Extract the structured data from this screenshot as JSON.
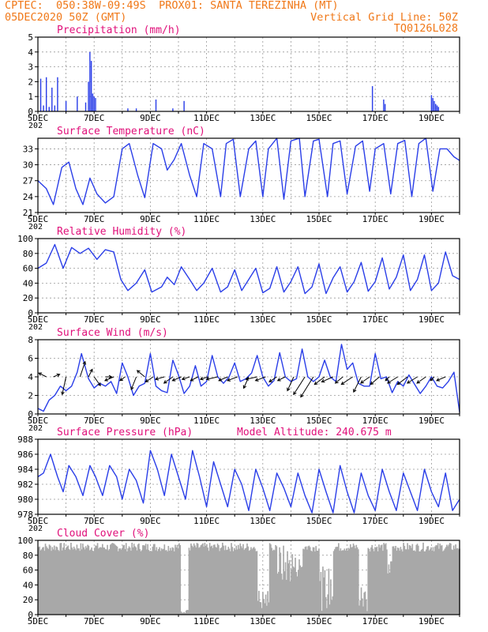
{
  "header": {
    "line1_left": "CPTEC:  050:38W-09:49S  PROX01: SANTA TEREZINHA (MT)",
    "line2_left": "05DEC2020 50Z (GMT)",
    "line2_right": "Vertical Grid Line: 50Z",
    "line3_right": "TQ0126L028",
    "altitude_label": "Model Altitude: 240.675 m"
  },
  "colors": {
    "header": "#f07818",
    "title": "#e0107a",
    "series": "#2a3ee8",
    "bars": "#2a3ee8",
    "cloud": "#a8a8a8"
  },
  "x_axis": {
    "labels": [
      "5DEC",
      "7DEC",
      "9DEC",
      "11DEC",
      "13DEC",
      "15DEC",
      "17DEC",
      "19DEC"
    ],
    "partial_label": "202",
    "start_day": 5,
    "end_day": 20
  },
  "chart_data": [
    {
      "type": "bar",
      "title": "Precipitation (mm/h)",
      "ylim": [
        0,
        5
      ],
      "yticks": [
        0,
        1,
        2,
        3,
        4,
        5
      ],
      "x_unit": "day of Dec 2020",
      "bar_width_days": 0.04,
      "x": [
        5.1,
        5.2,
        5.3,
        5.4,
        5.5,
        5.6,
        5.7,
        6.0,
        6.4,
        6.7,
        6.8,
        6.85,
        6.9,
        6.95,
        7.0,
        7.05,
        8.2,
        8.5,
        9.2,
        9.8,
        10.2,
        16.9,
        17.3,
        17.35,
        19.0,
        19.05,
        19.1,
        19.15,
        19.2,
        19.25
      ],
      "values": [
        2.2,
        0.4,
        2.3,
        0.3,
        1.6,
        0.4,
        2.3,
        0.7,
        1.0,
        0.6,
        2.0,
        4.0,
        3.4,
        1.2,
        1.0,
        0.9,
        0.2,
        0.2,
        0.8,
        0.2,
        0.7,
        1.7,
        0.8,
        0.5,
        1.1,
        0.9,
        0.7,
        0.5,
        0.4,
        0.3
      ]
    },
    {
      "type": "line",
      "title": "Surface Temperature (nC)",
      "ylim": [
        21,
        35
      ],
      "yticks": [
        21,
        24,
        27,
        30,
        33
      ],
      "series": [
        {
          "x": [
            5,
            5.3,
            5.55,
            5.85,
            6.1,
            6.35,
            6.6,
            6.85,
            7.1,
            7.4,
            7.7,
            8.0,
            8.25,
            8.55,
            8.8,
            9.1,
            9.4,
            9.6,
            9.85,
            10.1,
            10.4,
            10.65,
            10.9,
            11.2,
            11.5,
            11.7,
            11.95,
            12.2,
            12.5,
            12.75,
            13,
            13.2,
            13.5,
            13.75,
            14,
            14.3,
            14.5,
            14.8,
            15,
            15.3,
            15.5,
            15.75,
            16,
            16.3,
            16.55,
            16.8,
            17,
            17.3,
            17.55,
            17.8,
            18.05,
            18.3,
            18.55,
            18.8,
            19.05,
            19.3,
            19.55,
            19.8,
            20
          ],
          "values": [
            27,
            25.5,
            22.5,
            29.5,
            30.5,
            25.5,
            22.5,
            27.5,
            24.5,
            22.8,
            24,
            33,
            34,
            28,
            23.8,
            34,
            33,
            29,
            31,
            34,
            28,
            24,
            34,
            33,
            24,
            34,
            34.8,
            24,
            33,
            34.5,
            24,
            33,
            35,
            23.5,
            34.5,
            35,
            24,
            34.5,
            34.8,
            24,
            34,
            34.5,
            24.5,
            33.5,
            34.5,
            25,
            33,
            34,
            24.5,
            34,
            34.6,
            24,
            34,
            35,
            25,
            33,
            33,
            31.5,
            30.8
          ]
        }
      ]
    },
    {
      "type": "line",
      "title": "Relative Humidity (%)",
      "ylim": [
        0,
        100
      ],
      "yticks": [
        0,
        20,
        40,
        60,
        80,
        100
      ],
      "series": [
        {
          "x": [
            5,
            5.3,
            5.6,
            5.9,
            6.2,
            6.5,
            6.8,
            7.1,
            7.4,
            7.7,
            7.95,
            8.2,
            8.5,
            8.8,
            9.05,
            9.4,
            9.6,
            9.85,
            10.1,
            10.4,
            10.65,
            10.9,
            11.2,
            11.5,
            11.75,
            12,
            12.25,
            12.5,
            12.75,
            13,
            13.25,
            13.5,
            13.75,
            14,
            14.25,
            14.5,
            14.75,
            15,
            15.25,
            15.5,
            15.75,
            16,
            16.25,
            16.5,
            16.75,
            17,
            17.25,
            17.5,
            17.75,
            18,
            18.25,
            18.5,
            18.75,
            19,
            19.25,
            19.5,
            19.75,
            20
          ],
          "values": [
            60,
            67,
            92,
            60,
            88,
            80,
            87,
            72,
            85,
            82,
            45,
            30,
            40,
            58,
            28,
            35,
            48,
            38,
            62,
            45,
            30,
            40,
            60,
            28,
            35,
            58,
            30,
            45,
            60,
            27,
            33,
            62,
            28,
            42,
            62,
            26,
            35,
            66,
            26,
            47,
            62,
            28,
            42,
            68,
            29,
            42,
            74,
            32,
            48,
            78,
            30,
            45,
            78,
            30,
            40,
            82,
            50,
            45
          ]
        }
      ]
    },
    {
      "type": "line",
      "title": "Surface Wind (m/s)",
      "ylim": [
        0,
        8
      ],
      "yticks": [
        0,
        2,
        4,
        6,
        8
      ],
      "series": [
        {
          "x": [
            5,
            5.2,
            5.4,
            5.6,
            5.8,
            6.0,
            6.2,
            6.4,
            6.55,
            6.8,
            7.0,
            7.2,
            7.4,
            7.6,
            7.8,
            8.0,
            8.2,
            8.4,
            8.6,
            8.8,
            9.0,
            9.2,
            9.4,
            9.6,
            9.8,
            10.0,
            10.2,
            10.4,
            10.6,
            10.8,
            11.0,
            11.2,
            11.4,
            11.6,
            11.8,
            12.0,
            12.2,
            12.4,
            12.6,
            12.8,
            13.0,
            13.2,
            13.4,
            13.6,
            13.8,
            14.0,
            14.2,
            14.4,
            14.6,
            14.8,
            15.0,
            15.2,
            15.4,
            15.6,
            15.8,
            16.0,
            16.2,
            16.4,
            16.6,
            16.8,
            17.0,
            17.2,
            17.4,
            17.6,
            17.8,
            18.0,
            18.2,
            18.4,
            18.6,
            18.8,
            19.0,
            19.2,
            19.4,
            19.6,
            19.8,
            20
          ],
          "values": [
            0.6,
            0.3,
            1.5,
            2.0,
            3.0,
            2.5,
            3.0,
            4.5,
            6.5,
            3.8,
            2.8,
            3.3,
            3.0,
            3.5,
            2.2,
            5.5,
            4.0,
            2.0,
            3.0,
            3.3,
            6.5,
            3.0,
            2.5,
            2.3,
            5.8,
            4.2,
            2.2,
            3.0,
            5.2,
            3.0,
            3.5,
            6.3,
            4.0,
            3.3,
            4.0,
            5.5,
            3.5,
            3.8,
            4.4,
            6.3,
            4.0,
            3.0,
            3.6,
            6.6,
            4.0,
            3.5,
            3.8,
            7.0,
            4.0,
            3.5,
            4.0,
            5.8,
            4.0,
            3.5,
            7.5,
            4.8,
            5.5,
            3.3,
            3.0,
            3.0,
            6.5,
            3.8,
            4.0,
            2.3,
            3.5,
            3.0,
            4.2,
            3.2,
            2.2,
            3.0,
            4.0,
            3.0,
            2.8,
            3.5,
            4.5,
            0.2
          ]
        }
      ],
      "vectors": {
        "x": [
          5.3,
          5.55,
          6.0,
          6.5,
          6.8,
          7.0,
          7.4,
          7.7,
          8.1,
          8.5,
          8.8,
          9.1,
          9.5,
          9.8,
          10.1,
          10.4,
          10.7,
          11.05,
          11.4,
          11.75,
          12.1,
          12.5,
          12.8,
          13.1,
          13.5,
          13.8,
          14.1,
          14.5,
          14.8,
          15.2,
          15.5,
          15.85,
          16.2,
          16.5,
          16.8,
          17.15,
          17.5,
          17.8,
          18.15,
          18.5,
          18.8,
          19.1,
          19.5
        ],
        "u": [
          -0.6,
          0.5,
          -0.3,
          0.4,
          0.3,
          0.5,
          0.5,
          -0.7,
          -0.4,
          -0.4,
          -0.6,
          -0.6,
          -0.7,
          -0.7,
          -0.7,
          -0.6,
          -0.6,
          -0.6,
          -0.9,
          -0.7,
          -0.8,
          -0.4,
          -0.9,
          -0.8,
          -0.6,
          -0.6,
          -0.5,
          -0.9,
          -1.0,
          -0.8,
          -0.9,
          -0.6,
          -0.9,
          -0.6,
          -0.7,
          -0.7,
          -0.3,
          -0.8,
          -0.8,
          -0.8,
          -0.7,
          -0.3,
          -0.7
        ],
        "v": [
          0.3,
          0.2,
          -1.4,
          1.2,
          0.6,
          -0.7,
          0.0,
          -0.3,
          -0.3,
          -1.0,
          0.5,
          -0.4,
          -0.2,
          -0.5,
          -0.3,
          -0.2,
          -0.3,
          -0.2,
          -0.2,
          -0.3,
          -0.3,
          -0.9,
          -0.2,
          -0.3,
          -0.4,
          -0.3,
          -1.1,
          -1.4,
          -1.6,
          -0.6,
          -0.4,
          -0.5,
          -0.6,
          -1.2,
          -0.5,
          -0.6,
          -0.3,
          -0.5,
          -0.6,
          -0.5,
          -0.5,
          -0.3,
          -0.3
        ]
      }
    },
    {
      "type": "line",
      "title": "Surface Pressure (hPa)",
      "ylim": [
        978,
        988
      ],
      "yticks": [
        978,
        980,
        982,
        984,
        986,
        988
      ],
      "series": [
        {
          "x": [
            5,
            5.2,
            5.45,
            5.7,
            5.9,
            6.1,
            6.35,
            6.6,
            6.85,
            7.05,
            7.3,
            7.55,
            7.8,
            8.0,
            8.25,
            8.5,
            8.75,
            9.0,
            9.25,
            9.5,
            9.75,
            10.0,
            10.25,
            10.5,
            10.75,
            11.0,
            11.25,
            11.5,
            11.75,
            12.0,
            12.25,
            12.5,
            12.75,
            13.0,
            13.25,
            13.5,
            13.75,
            14.0,
            14.25,
            14.5,
            14.75,
            15.0,
            15.25,
            15.5,
            15.75,
            16.0,
            16.25,
            16.5,
            16.75,
            17.0,
            17.25,
            17.5,
            17.75,
            18.0,
            18.25,
            18.5,
            18.75,
            19.0,
            19.25,
            19.5,
            19.75,
            20
          ],
          "values": [
            983,
            983.5,
            986,
            983,
            981,
            984.5,
            983,
            980.5,
            984.5,
            983,
            980.5,
            984.5,
            983,
            980,
            984,
            982.5,
            979.5,
            986.5,
            984,
            980.5,
            986,
            983,
            980,
            986.5,
            983,
            979,
            985,
            982,
            979,
            984,
            982,
            978.5,
            984,
            981.5,
            978.5,
            983.5,
            981.5,
            979,
            983.5,
            980.5,
            978.2,
            984,
            981,
            978.2,
            984.5,
            981,
            978.2,
            983.5,
            980.5,
            978.5,
            984,
            981,
            978.5,
            983.5,
            981,
            978.5,
            984,
            981,
            979,
            983.5,
            978.5,
            980
          ]
        }
      ]
    },
    {
      "type": "bar",
      "title": "Cloud Cover (%)",
      "ylim": [
        0,
        100
      ],
      "yticks": [
        0,
        20,
        40,
        60,
        80,
        100
      ]
    }
  ]
}
